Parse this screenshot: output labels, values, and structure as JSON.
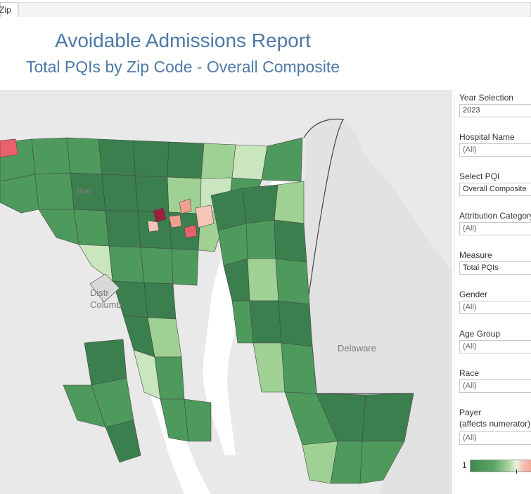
{
  "tabs": [
    {
      "label": "Zip"
    }
  ],
  "header": {
    "title": "Avoidable Admissions Report",
    "subtitle": "Total PQIs by Zip Code - Overall Composite"
  },
  "map": {
    "place_labels": [
      "Mar",
      "Distr",
      "Columb",
      "Delaware"
    ],
    "colors": {
      "water": "#ffffff",
      "land": "#e9e9e9",
      "dark_green": "#3b7f4f",
      "mid_green": "#4e9a5d",
      "light_green": "#9ed193",
      "pale_green": "#c9e6bf",
      "salmon": "#f0a08e",
      "light_salmon": "#f6c5b6",
      "red": "#e8616a",
      "dark_red": "#9c1f3d",
      "border": "#444444"
    }
  },
  "filters": [
    {
      "label": "Year Selection",
      "value": "2023"
    },
    {
      "label": "Hospital Name",
      "value": "(All)"
    },
    {
      "label": "Select PQI",
      "value": "Overall Composite"
    },
    {
      "label": "Attribution Category",
      "value": "(All)"
    },
    {
      "label": "Measure",
      "value": "Total PQIs"
    },
    {
      "label": "Gender",
      "value": "(All)"
    },
    {
      "label": "Age Group",
      "value": "(All)"
    },
    {
      "label": "Race",
      "value": "(All)"
    },
    {
      "label": "Payer",
      "label2": "(affects numerator)",
      "value": "(All)"
    }
  ],
  "legend": {
    "min_label": "1"
  }
}
